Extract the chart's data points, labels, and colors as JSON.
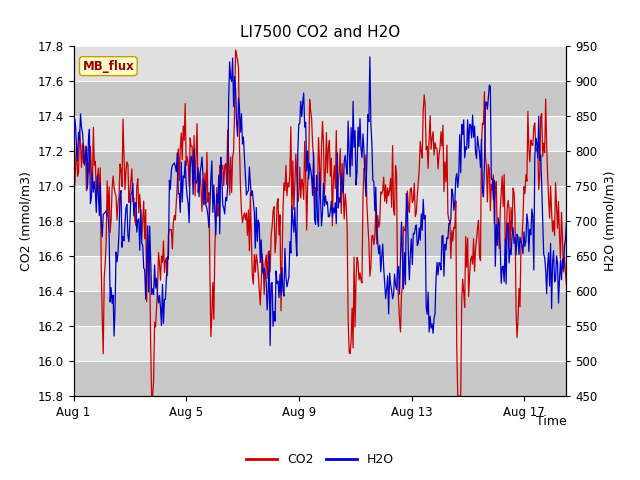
{
  "title": "LI7500 CO2 and H2O",
  "xlabel": "Time",
  "ylabel_left": "CO2 (mmol/m3)",
  "ylabel_right": "H2O (mmol/m3)",
  "ylim_left": [
    15.8,
    17.8
  ],
  "ylim_right": [
    450,
    950
  ],
  "xtick_labels": [
    "Aug 1",
    "Aug 5",
    "Aug 9",
    "Aug 13",
    "Aug 17"
  ],
  "xtick_positions": [
    0,
    4,
    8,
    12,
    16
  ],
  "co2_color": "#cc0000",
  "h2o_color": "#0000cc",
  "background_color": "#ffffff",
  "plot_bg_color": "#d8d8d8",
  "band_light": "#e0e0e0",
  "band_dark": "#c8c8c8",
  "mb_flux_label": "MB_flux",
  "mb_flux_bg": "#ffffcc",
  "mb_flux_border": "#cc9900",
  "mb_flux_text_color": "#990000",
  "title_fontsize": 11,
  "axis_fontsize": 9,
  "tick_fontsize": 8.5,
  "legend_fontsize": 9,
  "linewidth": 0.9
}
